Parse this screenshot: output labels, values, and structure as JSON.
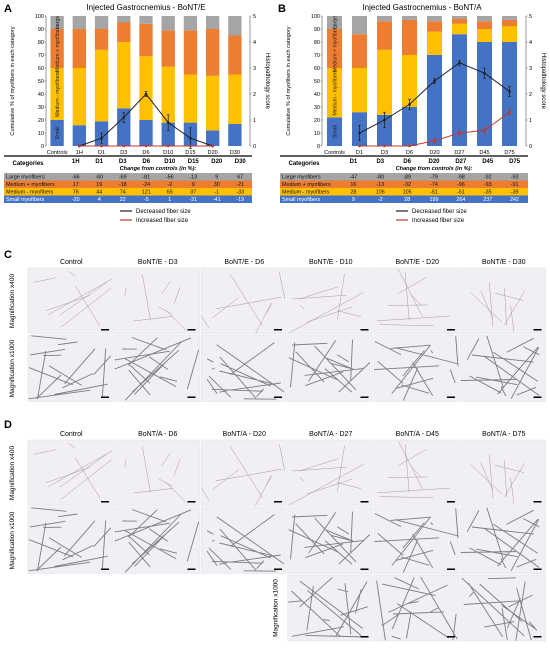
{
  "colors": {
    "small": "#4472c4",
    "medium": "#ffc000",
    "medium_plus": "#ed7d31",
    "large": "#a5a5a5",
    "decreased_line": "#222222",
    "increased_line": "#c0392b",
    "tissue_bg": "#f1eef4",
    "tissue_line": "#8a7f95"
  },
  "panel_labels": [
    "A",
    "B",
    "C",
    "D"
  ],
  "chart_data": [
    {
      "type": "bar",
      "title": "Injected Gastrocnemius - BoNT/E",
      "categories": [
        "Controls",
        "1H",
        "D1",
        "D3",
        "D6",
        "D10",
        "D15",
        "D20",
        "D30"
      ],
      "ylabel": "Cumulative % of myofibers in each category",
      "y2label": "Histopathology score",
      "ylim": [
        0,
        100
      ],
      "yticks": [
        0,
        10,
        20,
        30,
        40,
        50,
        60,
        70,
        80,
        90,
        100
      ],
      "y2lim": [
        0,
        5
      ],
      "y2ticks": [
        0,
        1,
        2,
        3,
        4,
        5
      ],
      "bar_labels": [
        "Small",
        "Medium - myofibers",
        "Medium + myofibers",
        "Large"
      ],
      "series": [
        {
          "name": "Small myofibers",
          "values": [
            20,
            16,
            19,
            29,
            20,
            18,
            18,
            12,
            17
          ]
        },
        {
          "name": "Medium - myofibers",
          "values": [
            40,
            44,
            55,
            51,
            49,
            43,
            37,
            42,
            38
          ]
        },
        {
          "name": "Medium + myofibers",
          "values": [
            30,
            30,
            16,
            15,
            25,
            28,
            34,
            36,
            30
          ]
        },
        {
          "name": "Large myofibers",
          "values": [
            10,
            10,
            10,
            5,
            6,
            11,
            11,
            10,
            15
          ]
        }
      ],
      "lines": [
        {
          "name": "Decreased fiber size",
          "points": [
            [
              "1H",
              0
            ],
            [
              "D1",
              0.3
            ],
            [
              "D3",
              1.1
            ],
            [
              "D6",
              2.0
            ],
            [
              "D10",
              0.9
            ],
            [
              "D15",
              0.3
            ],
            [
              "D20",
              0
            ]
          ],
          "errors": [
            0,
            0.2,
            0.2,
            0.1,
            0.3,
            0.4,
            0
          ]
        },
        {
          "name": "Increased fiber size",
          "points": [
            [
              "1H",
              0
            ],
            [
              "D1",
              0
            ],
            [
              "D3",
              0
            ],
            [
              "D6",
              0
            ],
            [
              "D10",
              0
            ],
            [
              "D15",
              0
            ],
            [
              "D20",
              0
            ]
          ],
          "errors": [
            0,
            0,
            0,
            0,
            0,
            0,
            0
          ]
        }
      ],
      "table": {
        "header_label": "Categories",
        "caption": "Change from controls (in %):",
        "columns": [
          "1H",
          "D1",
          "D3",
          "D6",
          "D10",
          "D15",
          "D20",
          "D30"
        ],
        "rows": [
          {
            "label": "Large myofibers",
            "values": [
              "-66",
              "-60",
              "-69",
              "-81",
              "-56",
              "-13",
              "9",
              "67"
            ]
          },
          {
            "label": "Medium + myofibers",
            "values": [
              "17",
              "19",
              "-18",
              "-24",
              "-2",
              "9",
              "30",
              "-21"
            ]
          },
          {
            "label": "Medium - myofibers",
            "values": [
              "76",
              "44",
              "74",
              "121",
              "65",
              "37",
              "-1",
              "-33"
            ]
          },
          {
            "label": "Small myofibers",
            "values": [
              "-20",
              "4",
              "22",
              "-5",
              "1",
              "-31",
              "-41",
              "-19"
            ]
          }
        ]
      },
      "legend": [
        "Decreased fiber size",
        "Increased fiber size"
      ]
    },
    {
      "type": "bar",
      "title": "Injected Gastrocnemius - BoNT/A",
      "categories": [
        "Controls",
        "D1",
        "D3",
        "D6",
        "D20",
        "D27",
        "D45",
        "D75"
      ],
      "ylabel": "Cumulative % of myofibers in each category",
      "y2label": "Histopathology score",
      "ylim": [
        0,
        100
      ],
      "yticks": [
        0,
        10,
        20,
        30,
        40,
        50,
        60,
        70,
        80,
        90,
        100
      ],
      "y2lim": [
        0,
        5
      ],
      "y2ticks": [
        0,
        1,
        2,
        3,
        4,
        5
      ],
      "bar_labels": [
        "Small",
        "Medium - myofibers",
        "Medium + myofibers",
        "Large"
      ],
      "series": [
        {
          "name": "Small myofibers",
          "values": [
            22,
            26,
            24,
            30,
            70,
            86,
            80,
            80
          ]
        },
        {
          "name": "Medium - myofibers",
          "values": [
            38,
            34,
            50,
            40,
            18,
            8,
            10,
            12
          ]
        },
        {
          "name": "Medium + myofibers",
          "values": [
            30,
            26,
            22,
            27,
            8,
            4,
            6,
            5
          ]
        },
        {
          "name": "Large myofibers",
          "values": [
            10,
            14,
            4,
            3,
            4,
            2,
            4,
            3
          ]
        }
      ],
      "lines": [
        {
          "name": "Decreased fiber size",
          "points": [
            [
              "D1",
              0.5
            ],
            [
              "D3",
              1.0
            ],
            [
              "D6",
              1.6
            ],
            [
              "D20",
              2.5
            ],
            [
              "D27",
              3.2
            ],
            [
              "D45",
              2.8
            ],
            [
              "D75",
              2.1
            ]
          ],
          "errors": [
            0.3,
            0.3,
            0.2,
            0.1,
            0.1,
            0.2,
            0.2
          ]
        },
        {
          "name": "Increased fiber size",
          "points": [
            [
              "D1",
              0
            ],
            [
              "D3",
              0
            ],
            [
              "D6",
              0
            ],
            [
              "D20",
              0.2
            ],
            [
              "D27",
              0.5
            ],
            [
              "D45",
              0.6
            ],
            [
              "D75",
              1.3
            ]
          ],
          "errors": [
            0,
            0,
            0,
            0.1,
            0.1,
            0.1,
            0.1
          ]
        }
      ],
      "table": {
        "header_label": "Categories",
        "caption": "Change from controls (in %):",
        "columns": [
          "D1",
          "D3",
          "D6",
          "D20",
          "D27",
          "D45",
          "D75"
        ],
        "rows": [
          {
            "label": "Large myofibers",
            "values": [
              "-47",
              "-80",
              "-89",
              "-79",
              "-98",
              "-92",
              "-93"
            ]
          },
          {
            "label": "Medium + myofibers",
            "values": [
              "16",
              "-13",
              "-32",
              "-74",
              "-96",
              "-93",
              "-91"
            ]
          },
          {
            "label": "Medium - myofibers",
            "values": [
              "28",
              "106",
              "105",
              "-51",
              "-51",
              "-35",
              "-39"
            ]
          },
          {
            "label": "Small myofibers",
            "values": [
              "9",
              "-2",
              "28",
              "199",
              "264",
              "237",
              "242"
            ]
          }
        ]
      },
      "legend": [
        "Decreased fiber size",
        "Increased fiber size"
      ]
    }
  ],
  "micrographs": {
    "C": {
      "columns": [
        "Control",
        "BoNT/E - D3",
        "BoNT/E - D6",
        "BoNT/E - D10",
        "BoNT/E - D20",
        "BoNT/E - D30"
      ],
      "rows": [
        "Magnification x400",
        "Magnification x1000"
      ]
    },
    "D": {
      "columns": [
        "Control",
        "BoNT/A - D6",
        "BoNT/A - D20",
        "BoNT/A - D27",
        "BoNT/A - D45",
        "BoNT/A - D75"
      ],
      "rows": [
        "Magnification x400",
        "Magnification x1000",
        "Magnification x1000"
      ]
    }
  }
}
